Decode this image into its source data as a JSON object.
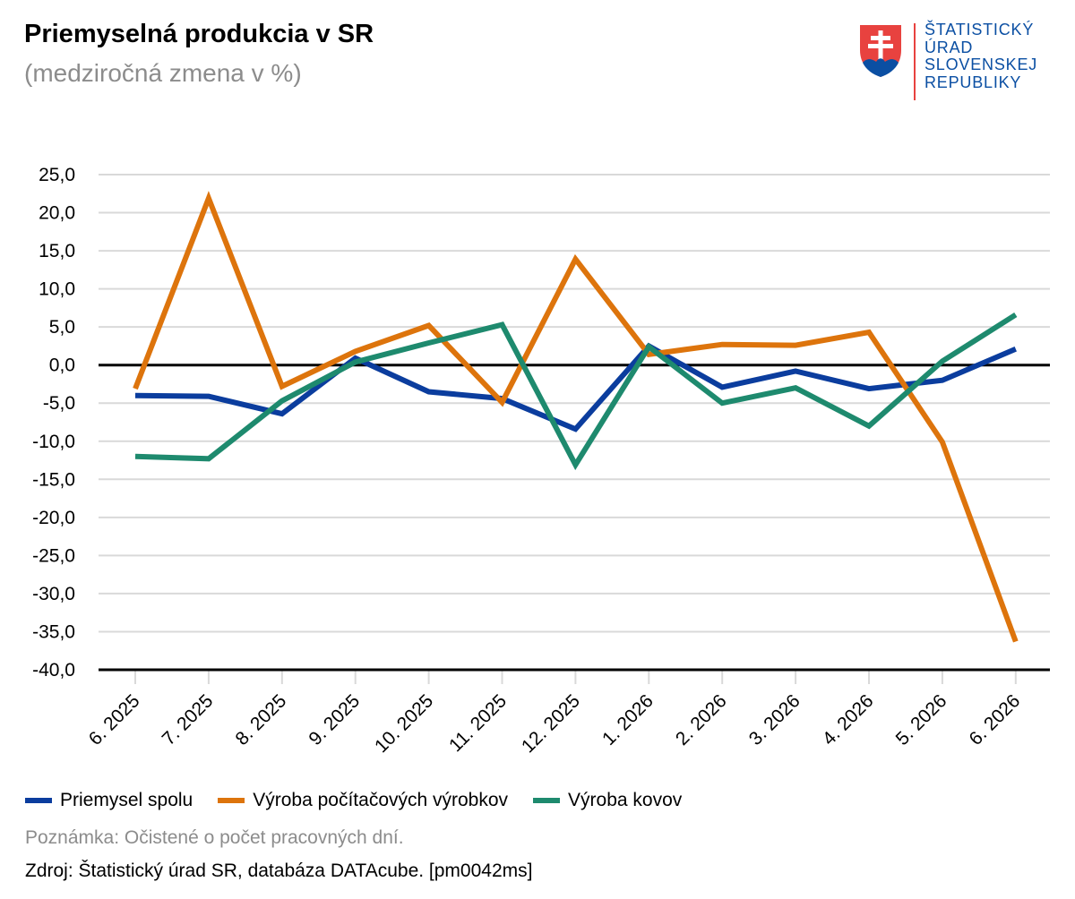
{
  "header": {
    "title": "Priemyselná produkcia v SR",
    "subtitle": "(medziročná zmena v %)"
  },
  "logo": {
    "lines": [
      "ŠTATISTICKÝ",
      "ÚRAD",
      "SLOVENSKEJ",
      "REPUBLIKY"
    ],
    "text_color": "#0b4fa3",
    "divider_color": "#e8423f"
  },
  "chart_data": {
    "type": "line",
    "title": "Priemyselná produkcia v SR",
    "subtitle": "(medziročná zmena v %)",
    "categories": [
      "6. 2025",
      "7. 2025",
      "8. 2025",
      "9. 2025",
      "10. 2025",
      "11. 2025",
      "12. 2025",
      "1. 2026",
      "2. 2026",
      "3. 2026",
      "4. 2026",
      "5. 2026",
      "6. 2026"
    ],
    "series": [
      {
        "name": "Priemysel spolu",
        "color": "#0b3d9e",
        "values": [
          -4.0,
          -4.1,
          -6.4,
          0.9,
          -3.5,
          -4.4,
          -8.4,
          2.5,
          -2.9,
          -0.8,
          -3.1,
          -2.0,
          2.1
        ]
      },
      {
        "name": "Výroba počítačových výrobkov",
        "color": "#dd740c",
        "values": [
          -3.1,
          21.9,
          -2.8,
          1.8,
          5.2,
          -4.9,
          13.9,
          1.4,
          2.7,
          2.6,
          4.3,
          -10.1,
          -36.3
        ]
      },
      {
        "name": "Výroba kovov",
        "color": "#1e8a6e",
        "values": [
          -12.0,
          -12.3,
          -4.7,
          0.4,
          2.9,
          5.3,
          -13.1,
          2.4,
          -5.0,
          -3.0,
          -8.0,
          0.5,
          6.6
        ]
      }
    ],
    "yticks": [
      "25,0",
      "20,0",
      "15,0",
      "10,0",
      "5,0",
      "0,0",
      "-5,0",
      "-10,0",
      "-15,0",
      "-20,0",
      "-25,0",
      "-30,0",
      "-35,0",
      "-40,0"
    ],
    "ylim": [
      -40,
      25
    ],
    "grid": true,
    "legend_position": "bottom"
  },
  "footer": {
    "note": "Poznámka: Očistené o počet pracovných dní.",
    "source": "Zdroj: Štatistický úrad SR, databáza DATAcube. [pm0042ms]"
  }
}
